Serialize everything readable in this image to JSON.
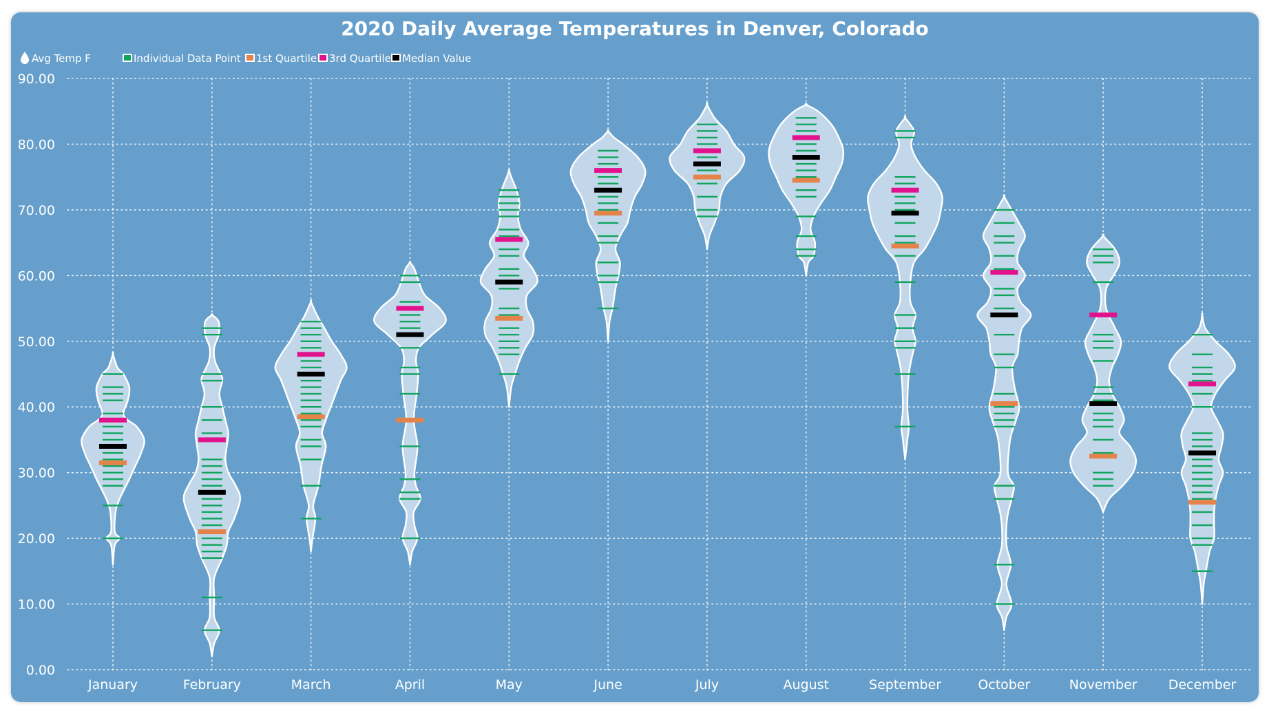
{
  "chart_data": {
    "type": "violin",
    "title": "2020 Daily Average Temperatures in Denver, Colorado",
    "value_field": "Avg Temp F",
    "legend": [
      {
        "label": "Individual Data Point",
        "color": "#10a45e"
      },
      {
        "label": "1st Quartile",
        "color": "#e4834a"
      },
      {
        "label": "3rd Quartile",
        "color": "#e2128c"
      },
      {
        "label": "Median Value",
        "color": "#000000"
      }
    ],
    "legend_placement": "top-left",
    "ylim": [
      0,
      90
    ],
    "y_ticks": [
      "0.00",
      "10.00",
      "20.00",
      "30.00",
      "40.00",
      "50.00",
      "60.00",
      "70.00",
      "80.00",
      "90.00"
    ],
    "grid": true,
    "colors": {
      "background": "#669fcb",
      "violin_fill": "#c2d7e9",
      "violin_stroke": "#ffffff"
    },
    "categories": [
      "January",
      "February",
      "March",
      "April",
      "May",
      "June",
      "July",
      "August",
      "September",
      "October",
      "November",
      "December"
    ],
    "series": [
      {
        "month": "January",
        "q1": 31.5,
        "median": 34,
        "q3": 38,
        "min": 16,
        "max": 48,
        "points": [
          20,
          25,
          28,
          29,
          30,
          31,
          32,
          33,
          35,
          36,
          37,
          39,
          41,
          42,
          43,
          45
        ],
        "density": [
          [
            16,
            0
          ],
          [
            19,
            2.5
          ],
          [
            20,
            9
          ],
          [
            21,
            2.5
          ],
          [
            24,
            3.5
          ],
          [
            26,
            9
          ],
          [
            29,
            22
          ],
          [
            31,
            30
          ],
          [
            33,
            38
          ],
          [
            35,
            42
          ],
          [
            37,
            32
          ],
          [
            38,
            20
          ],
          [
            39,
            14
          ],
          [
            41,
            20
          ],
          [
            43,
            22
          ],
          [
            45,
            14
          ],
          [
            46,
            6
          ],
          [
            48,
            0
          ]
        ]
      },
      {
        "month": "February",
        "q1": 21,
        "median": 27,
        "q3": 35,
        "min": 2,
        "max": 54,
        "points": [
          6,
          11,
          17,
          18,
          19,
          20,
          22,
          23,
          24,
          25,
          26,
          28,
          29,
          30,
          31,
          32,
          36,
          38,
          40,
          44,
          45,
          51,
          52
        ],
        "density": [
          [
            2,
            0
          ],
          [
            4,
            3
          ],
          [
            6,
            10
          ],
          [
            8,
            3
          ],
          [
            11,
            3
          ],
          [
            14,
            3
          ],
          [
            17,
            14
          ],
          [
            19,
            20
          ],
          [
            21,
            22
          ],
          [
            23,
            30
          ],
          [
            26,
            38
          ],
          [
            28,
            32
          ],
          [
            30,
            22
          ],
          [
            32,
            18
          ],
          [
            34,
            20
          ],
          [
            36,
            22
          ],
          [
            38,
            18
          ],
          [
            40,
            14
          ],
          [
            42,
            10
          ],
          [
            44,
            14
          ],
          [
            45,
            12
          ],
          [
            47,
            4
          ],
          [
            49,
            3
          ],
          [
            51,
            9
          ],
          [
            53,
            9
          ],
          [
            54,
            0
          ]
        ]
      },
      {
        "month": "March",
        "q1": 38.5,
        "median": 45,
        "q3": 48,
        "min": 18,
        "max": 56,
        "points": [
          23,
          28,
          32,
          34,
          35,
          37,
          38,
          39,
          40,
          41,
          42,
          43,
          44,
          46,
          47,
          49,
          50,
          51,
          52,
          53
        ],
        "density": [
          [
            18,
            0
          ],
          [
            20,
            2
          ],
          [
            23,
            6
          ],
          [
            25,
            3
          ],
          [
            28,
            10
          ],
          [
            31,
            14
          ],
          [
            34,
            20
          ],
          [
            36,
            15
          ],
          [
            38,
            20
          ],
          [
            41,
            30
          ],
          [
            44,
            40
          ],
          [
            46,
            48
          ],
          [
            48,
            40
          ],
          [
            50,
            28
          ],
          [
            52,
            18
          ],
          [
            54,
            8
          ],
          [
            56,
            0
          ]
        ]
      },
      {
        "month": "April",
        "q1": 38,
        "median": 51,
        "q3": 55,
        "min": 16,
        "max": 62,
        "points": [
          20,
          26,
          27,
          29,
          34,
          42,
          45,
          46,
          49,
          52,
          53,
          54,
          56,
          59,
          60
        ],
        "density": [
          [
            16,
            0
          ],
          [
            18,
            3
          ],
          [
            20,
            10
          ],
          [
            22,
            6
          ],
          [
            24,
            5
          ],
          [
            26,
            14
          ],
          [
            28,
            8
          ],
          [
            30,
            6
          ],
          [
            34,
            10
          ],
          [
            38,
            5
          ],
          [
            42,
            9
          ],
          [
            45,
            11
          ],
          [
            47,
            8
          ],
          [
            49,
            12
          ],
          [
            51,
            30
          ],
          [
            53,
            48
          ],
          [
            55,
            40
          ],
          [
            57,
            20
          ],
          [
            59,
            12
          ],
          [
            61,
            6
          ],
          [
            62,
            0
          ]
        ]
      },
      {
        "month": "May",
        "q1": 53.5,
        "median": 59,
        "q3": 65.5,
        "min": 40,
        "max": 76,
        "points": [
          45,
          48,
          49,
          50,
          51,
          52,
          54,
          55,
          58,
          60,
          61,
          63,
          64,
          66,
          67,
          69,
          70,
          71,
          72,
          73
        ],
        "density": [
          [
            40,
            0
          ],
          [
            43,
            3
          ],
          [
            45,
            8
          ],
          [
            47,
            14
          ],
          [
            49,
            22
          ],
          [
            51,
            32
          ],
          [
            53,
            32
          ],
          [
            55,
            24
          ],
          [
            57,
            24
          ],
          [
            59,
            38
          ],
          [
            61,
            32
          ],
          [
            63,
            20
          ],
          [
            65,
            26
          ],
          [
            67,
            16
          ],
          [
            69,
            12
          ],
          [
            71,
            14
          ],
          [
            73,
            10
          ],
          [
            75,
            3
          ],
          [
            76,
            0
          ]
        ]
      },
      {
        "month": "June",
        "q1": 69.5,
        "median": 73,
        "q3": 76,
        "min": 50,
        "max": 82,
        "points": [
          55,
          59,
          60,
          62,
          65,
          66,
          68,
          70,
          71,
          72,
          74,
          75,
          77,
          78,
          79
        ],
        "density": [
          [
            50,
            0
          ],
          [
            53,
            2
          ],
          [
            55,
            6
          ],
          [
            58,
            10
          ],
          [
            60,
            14
          ],
          [
            62,
            16
          ],
          [
            64,
            10
          ],
          [
            66,
            16
          ],
          [
            68,
            26
          ],
          [
            70,
            30
          ],
          [
            72,
            36
          ],
          [
            74,
            46
          ],
          [
            76,
            50
          ],
          [
            78,
            40
          ],
          [
            80,
            20
          ],
          [
            81,
            8
          ],
          [
            82,
            0
          ]
        ]
      },
      {
        "month": "July",
        "q1": 75,
        "median": 77,
        "q3": 79,
        "min": 64,
        "max": 86,
        "points": [
          69,
          70,
          72,
          74,
          76,
          78,
          80,
          81,
          82,
          83
        ],
        "density": [
          [
            64,
            0
          ],
          [
            66,
            3
          ],
          [
            68,
            10
          ],
          [
            70,
            16
          ],
          [
            72,
            18
          ],
          [
            74,
            26
          ],
          [
            76,
            44
          ],
          [
            78,
            50
          ],
          [
            80,
            36
          ],
          [
            82,
            26
          ],
          [
            84,
            10
          ],
          [
            86,
            0
          ]
        ]
      },
      {
        "month": "August",
        "q1": 74.5,
        "median": 78,
        "q3": 81,
        "min": 60,
        "max": 86,
        "points": [
          63,
          64,
          66,
          69,
          72,
          73,
          75,
          76,
          77,
          79,
          80,
          82,
          83,
          84
        ],
        "density": [
          [
            60,
            0
          ],
          [
            62,
            3
          ],
          [
            63,
            10
          ],
          [
            65,
            12
          ],
          [
            67,
            6
          ],
          [
            69,
            10
          ],
          [
            71,
            20
          ],
          [
            73,
            32
          ],
          [
            75,
            40
          ],
          [
            77,
            48
          ],
          [
            79,
            50
          ],
          [
            81,
            44
          ],
          [
            83,
            34
          ],
          [
            85,
            16
          ],
          [
            86,
            0
          ]
        ]
      },
      {
        "month": "September",
        "q1": 64.5,
        "median": 69.5,
        "q3": 73,
        "min": 32,
        "max": 84,
        "points": [
          37,
          45,
          49,
          50,
          52,
          54,
          59,
          63,
          65,
          66,
          68,
          70,
          71,
          72,
          74,
          75,
          81,
          82
        ],
        "density": [
          [
            32,
            0
          ],
          [
            35,
            3
          ],
          [
            37,
            5
          ],
          [
            40,
            3
          ],
          [
            45,
            5
          ],
          [
            48,
            10
          ],
          [
            50,
            14
          ],
          [
            52,
            10
          ],
          [
            54,
            14
          ],
          [
            56,
            7
          ],
          [
            59,
            7
          ],
          [
            62,
            12
          ],
          [
            64,
            26
          ],
          [
            66,
            36
          ],
          [
            68,
            44
          ],
          [
            70,
            48
          ],
          [
            72,
            50
          ],
          [
            74,
            42
          ],
          [
            76,
            26
          ],
          [
            78,
            14
          ],
          [
            80,
            8
          ],
          [
            82,
            12
          ],
          [
            84,
            0
          ]
        ]
      },
      {
        "month": "October",
        "q1": 40.5,
        "median": 54,
        "q3": 60.5,
        "min": 6,
        "max": 72,
        "points": [
          10,
          16,
          26,
          28,
          37,
          38,
          39,
          40,
          42,
          46,
          48,
          51,
          55,
          57,
          58,
          61,
          63,
          65,
          66,
          68,
          70
        ],
        "density": [
          [
            6,
            0
          ],
          [
            8,
            3
          ],
          [
            10,
            10
          ],
          [
            13,
            3
          ],
          [
            16,
            9
          ],
          [
            19,
            3
          ],
          [
            23,
            4
          ],
          [
            26,
            10
          ],
          [
            28,
            13
          ],
          [
            30,
            5
          ],
          [
            35,
            8
          ],
          [
            38,
            16
          ],
          [
            40,
            20
          ],
          [
            43,
            14
          ],
          [
            46,
            11
          ],
          [
            48,
            18
          ],
          [
            50,
            20
          ],
          [
            52,
            24
          ],
          [
            54,
            36
          ],
          [
            56,
            22
          ],
          [
            58,
            18
          ],
          [
            60,
            28
          ],
          [
            62,
            18
          ],
          [
            64,
            20
          ],
          [
            66,
            28
          ],
          [
            68,
            20
          ],
          [
            70,
            10
          ],
          [
            72,
            0
          ]
        ]
      },
      {
        "month": "November",
        "q1": 32.5,
        "median": 40.5,
        "q3": 54,
        "min": 24,
        "max": 66,
        "points": [
          28,
          29,
          30,
          33,
          35,
          37,
          38,
          39,
          41,
          42,
          43,
          47,
          49,
          50,
          51,
          59,
          62,
          63,
          64
        ],
        "density": [
          [
            24,
            0
          ],
          [
            26,
            8
          ],
          [
            28,
            26
          ],
          [
            30,
            40
          ],
          [
            32,
            44
          ],
          [
            34,
            36
          ],
          [
            36,
            22
          ],
          [
            38,
            28
          ],
          [
            40,
            22
          ],
          [
            42,
            12
          ],
          [
            44,
            8
          ],
          [
            46,
            12
          ],
          [
            48,
            20
          ],
          [
            50,
            24
          ],
          [
            52,
            16
          ],
          [
            55,
            4
          ],
          [
            58,
            4
          ],
          [
            60,
            14
          ],
          [
            62,
            22
          ],
          [
            64,
            16
          ],
          [
            66,
            0
          ]
        ]
      },
      {
        "month": "December",
        "q1": 25.5,
        "median": 33,
        "q3": 43.5,
        "min": 10,
        "max": 54,
        "points": [
          15,
          19,
          20,
          22,
          24,
          26,
          27,
          28,
          29,
          30,
          31,
          32,
          34,
          35,
          36,
          40,
          42,
          44,
          45,
          46,
          48,
          51
        ],
        "density": [
          [
            10,
            0
          ],
          [
            13,
            2
          ],
          [
            15,
            5
          ],
          [
            18,
            10
          ],
          [
            20,
            16
          ],
          [
            22,
            16
          ],
          [
            24,
            16
          ],
          [
            26,
            18
          ],
          [
            28,
            22
          ],
          [
            30,
            28
          ],
          [
            32,
            22
          ],
          [
            34,
            26
          ],
          [
            36,
            28
          ],
          [
            38,
            20
          ],
          [
            40,
            12
          ],
          [
            42,
            18
          ],
          [
            44,
            30
          ],
          [
            46,
            44
          ],
          [
            48,
            36
          ],
          [
            50,
            18
          ],
          [
            52,
            4
          ],
          [
            54,
            0
          ]
        ]
      }
    ]
  }
}
